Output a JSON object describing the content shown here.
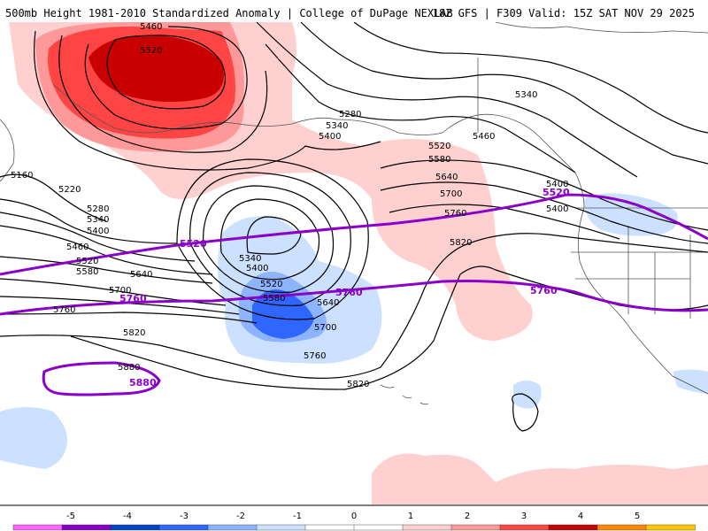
{
  "header": {
    "left": "500mb Height 1981-2010 Standardized Anomaly | College of DuPage NEXLAB",
    "right": "18Z GFS | F309 Valid: 15Z SAT NOV 29 2025"
  },
  "colors": {
    "purple_contour": "#8a00c8",
    "height_contour": "#000000",
    "coast": "#555555"
  },
  "map": {
    "contour_labels": [
      "5460",
      "5520",
      "5280",
      "5340",
      "5400",
      "5460",
      "5340",
      "5400",
      "5520",
      "5580",
      "5640",
      "5700",
      "5760",
      "5820",
      "5820",
      "5160",
      "5220",
      "5280",
      "5340",
      "5400",
      "5460",
      "5520",
      "5580",
      "5640",
      "5700",
      "5760",
      "5820",
      "5340",
      "5400",
      "5520",
      "5580",
      "5640",
      "5700",
      "5760",
      "5880",
      "5400"
    ],
    "purple_labels": [
      "5520",
      "5760",
      "5760",
      "5760",
      "5880",
      "5520"
    ]
  },
  "legend": {
    "colors": [
      "#ff66ff",
      "#8800c8",
      "#0044c8",
      "#2e66ff",
      "#8cb4ff",
      "#cce0ff",
      "#ffffff",
      "#ffffff",
      "#ffd0d0",
      "#ff9999",
      "#ff4444",
      "#c80000",
      "#ff8800",
      "#ffc800"
    ],
    "ticks": [
      "-5",
      "-4",
      "-3",
      "-2",
      "-1",
      "0",
      "1",
      "2",
      "3",
      "4",
      "5"
    ]
  }
}
